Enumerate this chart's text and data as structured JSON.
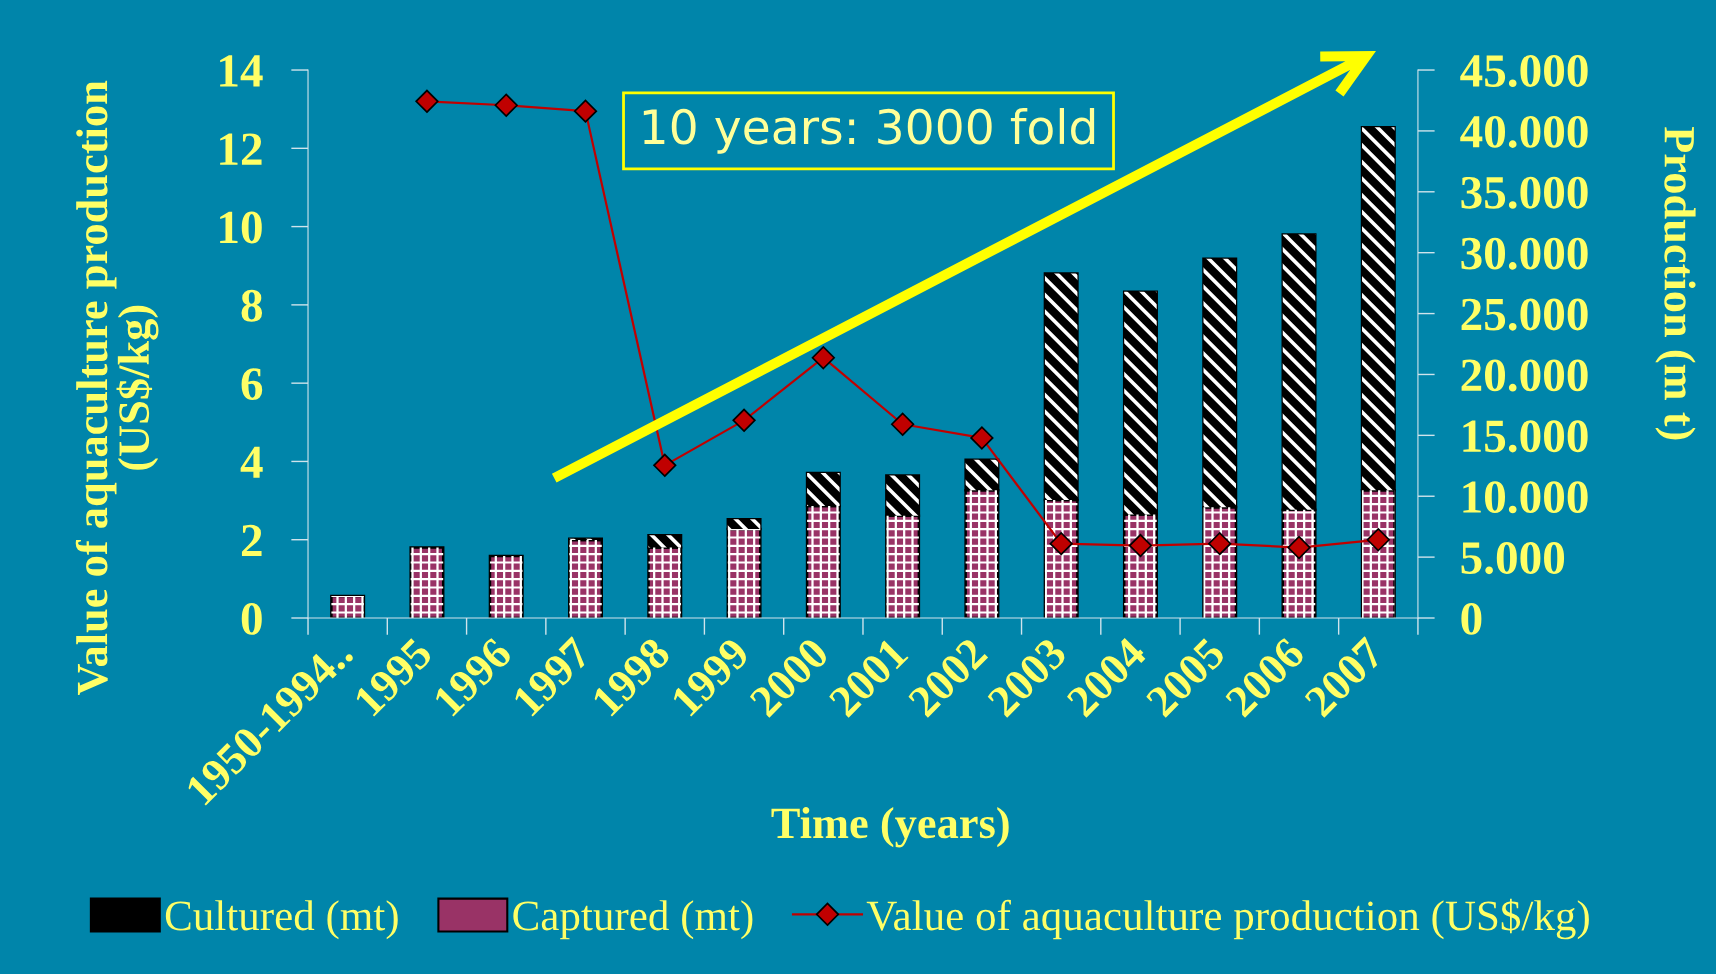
{
  "chart_data": {
    "type": "bar",
    "stacked": true,
    "xlabel": "Time (years)",
    "ylabel": "Value of aquaculture production\n(US$/kg)",
    "y2label": "Production (m t)",
    "categories": [
      "1950-1994..",
      "1995",
      "1996",
      "1997",
      "1998",
      "1999",
      "2000",
      "2001",
      "2002",
      "2003",
      "2004",
      "2005",
      "2006",
      "2007"
    ],
    "series": [
      {
        "name": "Captured (mt)",
        "color": "#993366",
        "axis": "y2",
        "values": [
          1800,
          5800,
          5100,
          6400,
          5800,
          7300,
          9200,
          8400,
          10500,
          9700,
          8500,
          9100,
          8900,
          10500
        ]
      },
      {
        "name": "Cultured (mt)",
        "color": "#000000",
        "axis": "y2",
        "values": [
          null,
          null,
          null,
          100,
          1000,
          800,
          2700,
          3300,
          2500,
          18600,
          18300,
          20400,
          22600,
          29800
        ]
      },
      {
        "name": "Value of aquaculture production (US$/kg)",
        "type": "line",
        "color": "#c00000",
        "marker": "diamond",
        "line_style": "solid",
        "values": [
          null,
          13.2,
          13.1,
          12.95,
          3.9,
          5.05,
          6.65,
          4.95,
          4.6,
          1.9,
          1.85,
          1.9,
          1.8,
          2.0
        ]
      }
    ],
    "ylim": [
      0,
      14
    ],
    "yticks": [
      0,
      2,
      4,
      6,
      8,
      10,
      12,
      14
    ],
    "y2lim": [
      0,
      45000
    ],
    "y2ticks": [
      0,
      {
        "value": 5000,
        "label": "5.000"
      },
      {
        "value": 10000,
        "label": "10.000"
      },
      {
        "value": 15000,
        "label": "15.000"
      },
      {
        "value": 20000,
        "label": "20.000"
      },
      {
        "value": 25000,
        "label": "25.000"
      },
      {
        "value": 30000,
        "label": "30.000"
      },
      {
        "value": 35000,
        "label": "35.000"
      },
      {
        "value": 40000,
        "label": "40.000"
      },
      {
        "value": 45000,
        "label": "45.000"
      }
    ],
    "legend": "bottom",
    "annotations": [
      "10 years: 3000 fold"
    ]
  }
}
